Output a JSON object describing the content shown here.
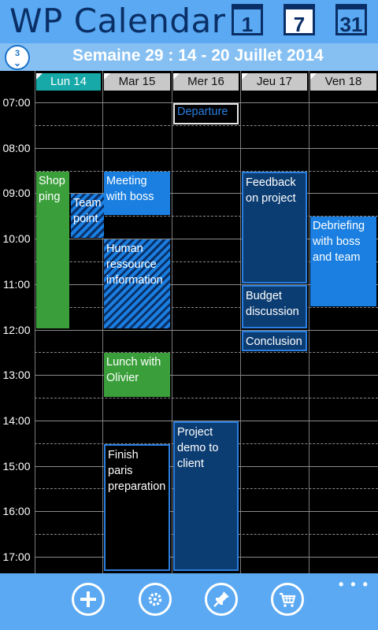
{
  "header": {
    "title": "WP Calendar",
    "views": [
      {
        "label": "1",
        "name": "day-view"
      },
      {
        "label": "7",
        "name": "week-view",
        "active": true
      },
      {
        "label": "31",
        "name": "month-view"
      }
    ]
  },
  "weekbar": {
    "badge_number": "3",
    "title": "Semaine 29 : 14 - 20 Juillet 2014"
  },
  "days": [
    {
      "label": "Lun 14",
      "today": true
    },
    {
      "label": "Mar 15"
    },
    {
      "label": "Mer 16"
    },
    {
      "label": "Jeu 17"
    },
    {
      "label": "Ven 18"
    }
  ],
  "times": [
    "07:00",
    "08:00",
    "09:00",
    "10:00",
    "11:00",
    "12:00",
    "13:00",
    "14:00",
    "15:00",
    "16:00",
    "17:00"
  ],
  "events": [
    {
      "title": "Departure",
      "day": 2,
      "start": "07:00",
      "end": "07:30",
      "style": "outline"
    },
    {
      "title": "Shopping",
      "display": "Shop ping",
      "day": 0,
      "start": "08:30",
      "end": "12:00",
      "style": "green"
    },
    {
      "title": "Team point",
      "day": 0,
      "start": "09:00",
      "end": "10:00",
      "style": "hatch"
    },
    {
      "title": "Meeting with boss",
      "day": 1,
      "start": "08:30",
      "end": "09:30",
      "style": "blue"
    },
    {
      "title": "Human ressource information",
      "day": 1,
      "start": "10:00",
      "end": "12:00",
      "style": "hatch"
    },
    {
      "title": "Lunch with Olivier",
      "day": 1,
      "start": "12:30",
      "end": "13:30",
      "style": "green"
    },
    {
      "title": "Finish paris preparation",
      "day": 1,
      "start": "14:30",
      "end": "17:20",
      "style": "black"
    },
    {
      "title": "Project demo to client",
      "day": 2,
      "start": "14:00",
      "end": "17:20",
      "style": "navy"
    },
    {
      "title": "Feedback on project",
      "day": 3,
      "start": "08:30",
      "end": "11:00",
      "style": "navy"
    },
    {
      "title": "Budget discussion",
      "day": 3,
      "start": "11:00",
      "end": "12:00",
      "style": "navy"
    },
    {
      "title": "Conclusion",
      "day": 3,
      "start": "12:00",
      "end": "12:30",
      "style": "navy"
    },
    {
      "title": "Debriefing with boss and team",
      "day": 4,
      "start": "09:30",
      "end": "11:30",
      "style": "blue"
    }
  ],
  "appbar": {
    "buttons": [
      "add-icon",
      "settings-icon",
      "pin-icon",
      "cart-icon"
    ],
    "more": "• • •"
  },
  "colors": {
    "header": "#5aa9f2",
    "weekbar": "#86c0f3",
    "today": "#16a9a8",
    "event_green": "#3a9f3a",
    "event_blue": "#1a7fe0",
    "event_navy": "#0c3d72"
  }
}
